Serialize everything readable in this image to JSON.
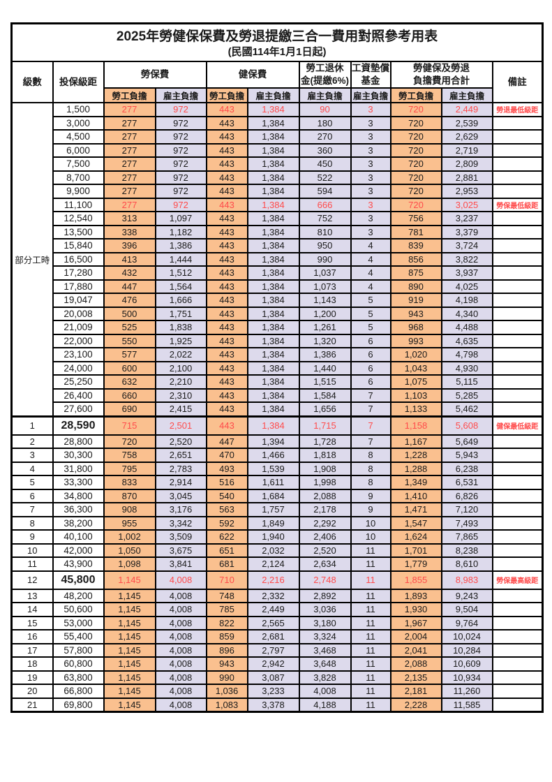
{
  "title": "2025年勞健保保費及勞退提繳三合一費用對照參考用表",
  "subtitle": "(民國114年1月1日起)",
  "colors": {
    "employee_bg": "#FAC08F",
    "employer_bg": "#DDDAEC",
    "highlight_red": "#FF4B4B",
    "border": "#000000"
  },
  "header": {
    "level": "級數",
    "bracket": "投保級距",
    "labor_insurance": "勞保費",
    "health_insurance": "健保費",
    "pension_line1": "勞工退休",
    "pension_line2": "金(提繳6%)",
    "wage_fund_line1": "工資墊償",
    "wage_fund_line2": "基金",
    "total_line1": "勞健保及勞退",
    "total_line2": "負擔費用合計",
    "remark": "備註",
    "employee": "勞工負擔",
    "employer": "雇主負擔"
  },
  "part_time_label": "部分工時",
  "rows": [
    {
      "group": "pt",
      "level": "",
      "bracket": "1,500",
      "labor_employee": "277",
      "labor_employer": "972",
      "health_employee": "443",
      "health_employer": "1,384",
      "pension_employer": "90",
      "wage_fund_employer": "3",
      "total_employee": "720",
      "total_employer": "2,449",
      "remark": "勞退最低級距",
      "red": true
    },
    {
      "group": "pt",
      "level": "",
      "bracket": "3,000",
      "labor_employee": "277",
      "labor_employer": "972",
      "health_employee": "443",
      "health_employer": "1,384",
      "pension_employer": "180",
      "wage_fund_employer": "3",
      "total_employee": "720",
      "total_employer": "2,539",
      "remark": ""
    },
    {
      "group": "pt",
      "level": "",
      "bracket": "4,500",
      "labor_employee": "277",
      "labor_employer": "972",
      "health_employee": "443",
      "health_employer": "1,384",
      "pension_employer": "270",
      "wage_fund_employer": "3",
      "total_employee": "720",
      "total_employer": "2,629",
      "remark": ""
    },
    {
      "group": "pt",
      "level": "",
      "bracket": "6,000",
      "labor_employee": "277",
      "labor_employer": "972",
      "health_employee": "443",
      "health_employer": "1,384",
      "pension_employer": "360",
      "wage_fund_employer": "3",
      "total_employee": "720",
      "total_employer": "2,719",
      "remark": ""
    },
    {
      "group": "pt",
      "level": "",
      "bracket": "7,500",
      "labor_employee": "277",
      "labor_employer": "972",
      "health_employee": "443",
      "health_employer": "1,384",
      "pension_employer": "450",
      "wage_fund_employer": "3",
      "total_employee": "720",
      "total_employer": "2,809",
      "remark": ""
    },
    {
      "group": "pt",
      "level": "",
      "bracket": "8,700",
      "labor_employee": "277",
      "labor_employer": "972",
      "health_employee": "443",
      "health_employer": "1,384",
      "pension_employer": "522",
      "wage_fund_employer": "3",
      "total_employee": "720",
      "total_employer": "2,881",
      "remark": ""
    },
    {
      "group": "pt",
      "level": "",
      "bracket": "9,900",
      "labor_employee": "277",
      "labor_employer": "972",
      "health_employee": "443",
      "health_employer": "1,384",
      "pension_employer": "594",
      "wage_fund_employer": "3",
      "total_employee": "720",
      "total_employer": "2,953",
      "remark": ""
    },
    {
      "group": "pt",
      "level": "",
      "bracket": "11,100",
      "labor_employee": "277",
      "labor_employer": "972",
      "health_employee": "443",
      "health_employer": "1,384",
      "pension_employer": "666",
      "wage_fund_employer": "3",
      "total_employee": "720",
      "total_employer": "3,025",
      "remark": "勞保最低級距",
      "red": true
    },
    {
      "group": "pt",
      "level": "",
      "bracket": "12,540",
      "labor_employee": "313",
      "labor_employer": "1,097",
      "health_employee": "443",
      "health_employer": "1,384",
      "pension_employer": "752",
      "wage_fund_employer": "3",
      "total_employee": "756",
      "total_employer": "3,237",
      "remark": ""
    },
    {
      "group": "pt",
      "level": "",
      "bracket": "13,500",
      "labor_employee": "338",
      "labor_employer": "1,182",
      "health_employee": "443",
      "health_employer": "1,384",
      "pension_employer": "810",
      "wage_fund_employer": "3",
      "total_employee": "781",
      "total_employer": "3,379",
      "remark": ""
    },
    {
      "group": "pt",
      "level": "",
      "bracket": "15,840",
      "labor_employee": "396",
      "labor_employer": "1,386",
      "health_employee": "443",
      "health_employer": "1,384",
      "pension_employer": "950",
      "wage_fund_employer": "4",
      "total_employee": "839",
      "total_employer": "3,724",
      "remark": ""
    },
    {
      "group": "pt",
      "level": "",
      "bracket": "16,500",
      "labor_employee": "413",
      "labor_employer": "1,444",
      "health_employee": "443",
      "health_employer": "1,384",
      "pension_employer": "990",
      "wage_fund_employer": "4",
      "total_employee": "856",
      "total_employer": "3,822",
      "remark": ""
    },
    {
      "group": "pt",
      "level": "",
      "bracket": "17,280",
      "labor_employee": "432",
      "labor_employer": "1,512",
      "health_employee": "443",
      "health_employer": "1,384",
      "pension_employer": "1,037",
      "wage_fund_employer": "4",
      "total_employee": "875",
      "total_employer": "3,937",
      "remark": ""
    },
    {
      "group": "pt",
      "level": "",
      "bracket": "17,880",
      "labor_employee": "447",
      "labor_employer": "1,564",
      "health_employee": "443",
      "health_employer": "1,384",
      "pension_employer": "1,073",
      "wage_fund_employer": "4",
      "total_employee": "890",
      "total_employer": "4,025",
      "remark": ""
    },
    {
      "group": "pt",
      "level": "",
      "bracket": "19,047",
      "labor_employee": "476",
      "labor_employer": "1,666",
      "health_employee": "443",
      "health_employer": "1,384",
      "pension_employer": "1,143",
      "wage_fund_employer": "5",
      "total_employee": "919",
      "total_employer": "4,198",
      "remark": ""
    },
    {
      "group": "pt",
      "level": "",
      "bracket": "20,008",
      "labor_employee": "500",
      "labor_employer": "1,751",
      "health_employee": "443",
      "health_employer": "1,384",
      "pension_employer": "1,200",
      "wage_fund_employer": "5",
      "total_employee": "943",
      "total_employer": "4,340",
      "remark": ""
    },
    {
      "group": "pt",
      "level": "",
      "bracket": "21,009",
      "labor_employee": "525",
      "labor_employer": "1,838",
      "health_employee": "443",
      "health_employer": "1,384",
      "pension_employer": "1,261",
      "wage_fund_employer": "5",
      "total_employee": "968",
      "total_employer": "4,488",
      "remark": ""
    },
    {
      "group": "pt",
      "level": "",
      "bracket": "22,000",
      "labor_employee": "550",
      "labor_employer": "1,925",
      "health_employee": "443",
      "health_employer": "1,384",
      "pension_employer": "1,320",
      "wage_fund_employer": "6",
      "total_employee": "993",
      "total_employer": "4,635",
      "remark": ""
    },
    {
      "group": "pt",
      "level": "",
      "bracket": "23,100",
      "labor_employee": "577",
      "labor_employer": "2,022",
      "health_employee": "443",
      "health_employer": "1,384",
      "pension_employer": "1,386",
      "wage_fund_employer": "6",
      "total_employee": "1,020",
      "total_employer": "4,798",
      "remark": ""
    },
    {
      "group": "pt",
      "level": "",
      "bracket": "24,000",
      "labor_employee": "600",
      "labor_employer": "2,100",
      "health_employee": "443",
      "health_employer": "1,384",
      "pension_employer": "1,440",
      "wage_fund_employer": "6",
      "total_employee": "1,043",
      "total_employer": "4,930",
      "remark": ""
    },
    {
      "group": "pt",
      "level": "",
      "bracket": "25,250",
      "labor_employee": "632",
      "labor_employer": "2,210",
      "health_employee": "443",
      "health_employer": "1,384",
      "pension_employer": "1,515",
      "wage_fund_employer": "6",
      "total_employee": "1,075",
      "total_employer": "5,115",
      "remark": ""
    },
    {
      "group": "pt",
      "level": "",
      "bracket": "26,400",
      "labor_employee": "660",
      "labor_employer": "2,310",
      "health_employee": "443",
      "health_employer": "1,384",
      "pension_employer": "1,584",
      "wage_fund_employer": "7",
      "total_employee": "1,103",
      "total_employer": "5,285",
      "remark": ""
    },
    {
      "group": "pt",
      "level": "",
      "bracket": "27,600",
      "labor_employee": "690",
      "labor_employer": "2,415",
      "health_employee": "443",
      "health_employer": "1,384",
      "pension_employer": "1,656",
      "wage_fund_employer": "7",
      "total_employee": "1,133",
      "total_employer": "5,462",
      "remark": ""
    },
    {
      "group": "num",
      "level": "1",
      "bracket": "28,590",
      "labor_employee": "715",
      "labor_employer": "2,501",
      "health_employee": "443",
      "health_employer": "1,384",
      "pension_employer": "1,715",
      "wage_fund_employer": "7",
      "total_employee": "1,158",
      "total_employer": "5,608",
      "remark": "健保最低級距",
      "red": true,
      "tall": true,
      "thick_top": true
    },
    {
      "group": "num",
      "level": "2",
      "bracket": "28,800",
      "labor_employee": "720",
      "labor_employer": "2,520",
      "health_employee": "447",
      "health_employer": "1,394",
      "pension_employer": "1,728",
      "wage_fund_employer": "7",
      "total_employee": "1,167",
      "total_employer": "5,649",
      "remark": ""
    },
    {
      "group": "num",
      "level": "3",
      "bracket": "30,300",
      "labor_employee": "758",
      "labor_employer": "2,651",
      "health_employee": "470",
      "health_employer": "1,466",
      "pension_employer": "1,818",
      "wage_fund_employer": "8",
      "total_employee": "1,228",
      "total_employer": "5,943",
      "remark": ""
    },
    {
      "group": "num",
      "level": "4",
      "bracket": "31,800",
      "labor_employee": "795",
      "labor_employer": "2,783",
      "health_employee": "493",
      "health_employer": "1,539",
      "pension_employer": "1,908",
      "wage_fund_employer": "8",
      "total_employee": "1,288",
      "total_employer": "6,238",
      "remark": ""
    },
    {
      "group": "num",
      "level": "5",
      "bracket": "33,300",
      "labor_employee": "833",
      "labor_employer": "2,914",
      "health_employee": "516",
      "health_employer": "1,611",
      "pension_employer": "1,998",
      "wage_fund_employer": "8",
      "total_employee": "1,349",
      "total_employer": "6,531",
      "remark": ""
    },
    {
      "group": "num",
      "level": "6",
      "bracket": "34,800",
      "labor_employee": "870",
      "labor_employer": "3,045",
      "health_employee": "540",
      "health_employer": "1,684",
      "pension_employer": "2,088",
      "wage_fund_employer": "9",
      "total_employee": "1,410",
      "total_employer": "6,826",
      "remark": ""
    },
    {
      "group": "num",
      "level": "7",
      "bracket": "36,300",
      "labor_employee": "908",
      "labor_employer": "3,176",
      "health_employee": "563",
      "health_employer": "1,757",
      "pension_employer": "2,178",
      "wage_fund_employer": "9",
      "total_employee": "1,471",
      "total_employer": "7,120",
      "remark": ""
    },
    {
      "group": "num",
      "level": "8",
      "bracket": "38,200",
      "labor_employee": "955",
      "labor_employer": "3,342",
      "health_employee": "592",
      "health_employer": "1,849",
      "pension_employer": "2,292",
      "wage_fund_employer": "10",
      "total_employee": "1,547",
      "total_employer": "7,493",
      "remark": ""
    },
    {
      "group": "num",
      "level": "9",
      "bracket": "40,100",
      "labor_employee": "1,002",
      "labor_employer": "3,509",
      "health_employee": "622",
      "health_employer": "1,940",
      "pension_employer": "2,406",
      "wage_fund_employer": "10",
      "total_employee": "1,624",
      "total_employer": "7,865",
      "remark": ""
    },
    {
      "group": "num",
      "level": "10",
      "bracket": "42,000",
      "labor_employee": "1,050",
      "labor_employer": "3,675",
      "health_employee": "651",
      "health_employer": "2,032",
      "pension_employer": "2,520",
      "wage_fund_employer": "11",
      "total_employee": "1,701",
      "total_employer": "8,238",
      "remark": ""
    },
    {
      "group": "num",
      "level": "11",
      "bracket": "43,900",
      "labor_employee": "1,098",
      "labor_employer": "3,841",
      "health_employee": "681",
      "health_employer": "2,124",
      "pension_employer": "2,634",
      "wage_fund_employer": "11",
      "total_employee": "1,779",
      "total_employer": "8,610",
      "remark": ""
    },
    {
      "group": "num",
      "level": "12",
      "bracket": "45,800",
      "labor_employee": "1,145",
      "labor_employer": "4,008",
      "health_employee": "710",
      "health_employer": "2,216",
      "pension_employer": "2,748",
      "wage_fund_employer": "11",
      "total_employee": "1,855",
      "total_employer": "8,983",
      "remark": "勞保最高級距",
      "red": true,
      "tall": true
    },
    {
      "group": "num",
      "level": "13",
      "bracket": "48,200",
      "labor_employee": "1,145",
      "labor_employer": "4,008",
      "health_employee": "748",
      "health_employer": "2,332",
      "pension_employer": "2,892",
      "wage_fund_employer": "11",
      "total_employee": "1,893",
      "total_employer": "9,243",
      "remark": ""
    },
    {
      "group": "num",
      "level": "14",
      "bracket": "50,600",
      "labor_employee": "1,145",
      "labor_employer": "4,008",
      "health_employee": "785",
      "health_employer": "2,449",
      "pension_employer": "3,036",
      "wage_fund_employer": "11",
      "total_employee": "1,930",
      "total_employer": "9,504",
      "remark": ""
    },
    {
      "group": "num",
      "level": "15",
      "bracket": "53,000",
      "labor_employee": "1,145",
      "labor_employer": "4,008",
      "health_employee": "822",
      "health_employer": "2,565",
      "pension_employer": "3,180",
      "wage_fund_employer": "11",
      "total_employee": "1,967",
      "total_employer": "9,764",
      "remark": ""
    },
    {
      "group": "num",
      "level": "16",
      "bracket": "55,400",
      "labor_employee": "1,145",
      "labor_employer": "4,008",
      "health_employee": "859",
      "health_employer": "2,681",
      "pension_employer": "3,324",
      "wage_fund_employer": "11",
      "total_employee": "2,004",
      "total_employer": "10,024",
      "remark": ""
    },
    {
      "group": "num",
      "level": "17",
      "bracket": "57,800",
      "labor_employee": "1,145",
      "labor_employer": "4,008",
      "health_employee": "896",
      "health_employer": "2,797",
      "pension_employer": "3,468",
      "wage_fund_employer": "11",
      "total_employee": "2,041",
      "total_employer": "10,284",
      "remark": ""
    },
    {
      "group": "num",
      "level": "18",
      "bracket": "60,800",
      "labor_employee": "1,145",
      "labor_employer": "4,008",
      "health_employee": "943",
      "health_employer": "2,942",
      "pension_employer": "3,648",
      "wage_fund_employer": "11",
      "total_employee": "2,088",
      "total_employer": "10,609",
      "remark": ""
    },
    {
      "group": "num",
      "level": "19",
      "bracket": "63,800",
      "labor_employee": "1,145",
      "labor_employer": "4,008",
      "health_employee": "990",
      "health_employer": "3,087",
      "pension_employer": "3,828",
      "wage_fund_employer": "11",
      "total_employee": "2,135",
      "total_employer": "10,934",
      "remark": ""
    },
    {
      "group": "num",
      "level": "20",
      "bracket": "66,800",
      "labor_employee": "1,145",
      "labor_employer": "4,008",
      "health_employee": "1,036",
      "health_employer": "3,233",
      "pension_employer": "4,008",
      "wage_fund_employer": "11",
      "total_employee": "2,181",
      "total_employer": "11,260",
      "remark": ""
    },
    {
      "group": "num",
      "level": "21",
      "bracket": "69,800",
      "labor_employee": "1,145",
      "labor_employer": "4,008",
      "health_employee": "1,083",
      "health_employer": "3,378",
      "pension_employer": "4,188",
      "wage_fund_employer": "11",
      "total_employee": "2,228",
      "total_employer": "11,585",
      "remark": ""
    }
  ]
}
